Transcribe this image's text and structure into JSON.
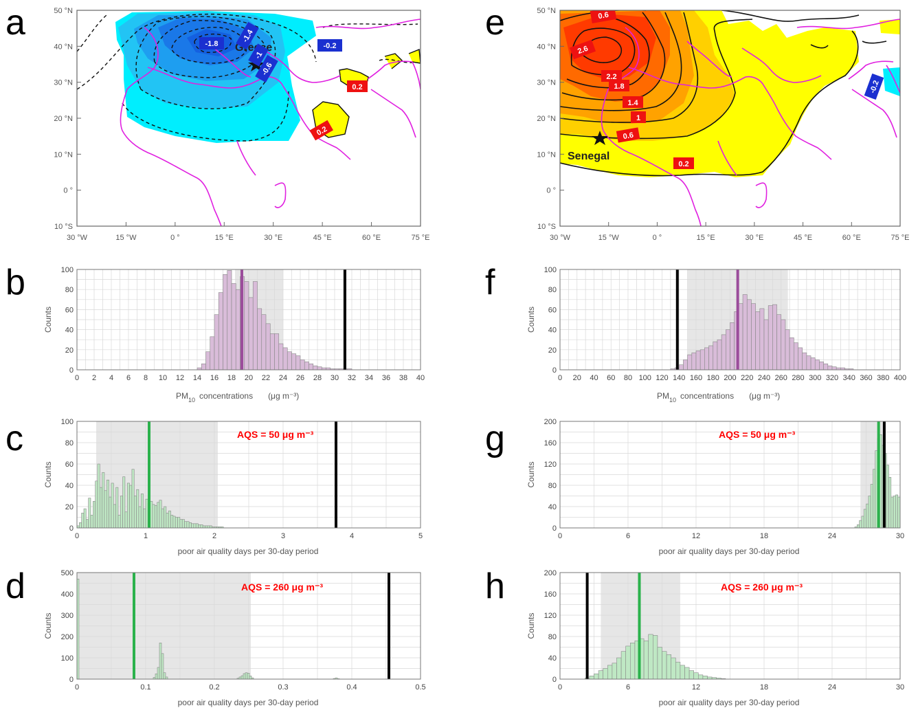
{
  "panel_labels": [
    "a",
    "e",
    "b",
    "f",
    "c",
    "g",
    "d",
    "h"
  ],
  "map_lon_ticks": [
    "30 °W",
    "15 °W",
    "0 °",
    "15 °E",
    "30 °E",
    "45 °E",
    "60 °E",
    "75 °E"
  ],
  "map_lat_ticks": [
    "50 °N",
    "40 °N",
    "30 °N",
    "20 °N",
    "10 °N",
    "0 °",
    "10 °S"
  ],
  "map_a": {
    "place": "Greece",
    "contour_labels": [
      "-1.8",
      "-1.4",
      "-1",
      "-0.6",
      "-0.2",
      "0.2",
      "0.2"
    ]
  },
  "map_e": {
    "place": "Senegal",
    "contour_labels": [
      "0.6",
      "2.6",
      "2.2",
      "1.8",
      "1.4",
      "1",
      "0.6",
      "0.2",
      "-0.2"
    ]
  },
  "xlabel_pm": "PM",
  "xlabel_pm_sub": "10",
  "xlabel_pm_rest": "concentrations",
  "xlabel_pm_unit": "(μg m⁻³)",
  "xlabel_days": "poor air quality days per 30-day period",
  "ylabel": "Counts",
  "aqs_50": "AQS = 50 μg m⁻³",
  "aqs_260": "AQS = 260 μg m⁻³",
  "chart_data": [
    {
      "panel": "b",
      "type": "bar",
      "xlim": [
        0,
        40
      ],
      "ylim": [
        0,
        100
      ],
      "xticks": [
        0,
        2,
        4,
        6,
        8,
        10,
        12,
        14,
        16,
        18,
        20,
        22,
        24,
        26,
        28,
        30,
        32,
        34,
        36,
        38,
        40
      ],
      "yticks": [
        0,
        20,
        40,
        60,
        80,
        100
      ],
      "bin_start": 14.0,
      "bin_width": 0.5,
      "values": [
        2,
        6,
        18,
        33,
        55,
        77,
        95,
        99,
        86,
        80,
        93,
        88,
        72,
        88,
        61,
        55,
        46,
        36,
        36,
        26,
        22,
        18,
        16,
        14,
        10,
        8,
        6,
        4,
        3,
        2,
        2,
        1,
        1,
        1,
        1,
        1
      ],
      "shade": [
        18.4,
        24.0
      ],
      "median_line": 19.2,
      "observed_line": 31.2,
      "hist_color": "#d9bcd9",
      "median_color": "#9b4c9b",
      "shade_color": "#e6e6e6"
    },
    {
      "panel": "f",
      "type": "bar",
      "xlim": [
        0,
        400
      ],
      "ylim": [
        0,
        100
      ],
      "xticks": [
        0,
        20,
        40,
        60,
        80,
        100,
        120,
        140,
        160,
        180,
        200,
        220,
        240,
        260,
        280,
        300,
        320,
        340,
        360,
        380,
        400
      ],
      "yticks": [
        0,
        20,
        40,
        60,
        80,
        100
      ],
      "bin_start": 130,
      "bin_width": 5,
      "values": [
        1,
        2,
        5,
        10,
        15,
        17,
        19,
        20,
        22,
        24,
        28,
        30,
        35,
        40,
        47,
        58,
        66,
        75,
        70,
        66,
        58,
        61,
        50,
        64,
        65,
        55,
        50,
        40,
        32,
        27,
        22,
        17,
        14,
        12,
        10,
        8,
        6,
        4,
        3,
        2,
        2,
        1,
        1
      ],
      "shade": [
        150,
        268
      ],
      "median_line": 209,
      "observed_line": 138,
      "hist_color": "#d9bcd9",
      "median_color": "#9b4c9b",
      "shade_color": "#e6e6e6"
    },
    {
      "panel": "c",
      "type": "bar",
      "xlim": [
        0,
        5
      ],
      "ylim": [
        0,
        100
      ],
      "xticks": [
        0,
        1,
        2,
        3,
        4,
        5
      ],
      "yticks": [
        0,
        20,
        40,
        60,
        80,
        100
      ],
      "bin_start": 0.0,
      "bin_width": 0.0333,
      "values": [
        2,
        5,
        14,
        18,
        8,
        28,
        12,
        25,
        44,
        60,
        38,
        52,
        35,
        45,
        29,
        42,
        22,
        38,
        12,
        30,
        48,
        15,
        42,
        40,
        55,
        30,
        36,
        20,
        32,
        18,
        27,
        23,
        25,
        22,
        21,
        24,
        26,
        18,
        20,
        14,
        16,
        12,
        11,
        10,
        10,
        8,
        8,
        6,
        6,
        5,
        4,
        4,
        4,
        3,
        3,
        2,
        2,
        2,
        2,
        1,
        1,
        1,
        1,
        1
      ],
      "shade": [
        0.28,
        2.05
      ],
      "median_line": 1.05,
      "observed_line": 3.77,
      "hist_color": "#bfe8c4",
      "median_color": "#2bb24c",
      "shade_color": "#e6e6e6"
    },
    {
      "panel": "g",
      "type": "bar",
      "xlim": [
        0,
        30
      ],
      "ylim": [
        0,
        200
      ],
      "xticks": [
        0,
        6,
        12,
        18,
        24,
        30
      ],
      "yticks": [
        0,
        40,
        80,
        120,
        160,
        200
      ],
      "bin_start": 26.0,
      "bin_width": 0.2,
      "values": [
        2,
        6,
        14,
        22,
        35,
        45,
        60,
        82,
        110,
        145,
        168,
        175,
        155,
        140,
        118,
        95,
        58,
        60,
        62,
        58
      ],
      "shade": [
        26.5,
        28.7
      ],
      "median_line": 28.1,
      "observed_line": 28.6,
      "hist_color": "#bfe8c4",
      "median_color": "#2bb24c",
      "shade_color": "#e6e6e6"
    },
    {
      "panel": "d",
      "type": "bar",
      "xlim": [
        0,
        0.5
      ],
      "ylim": [
        0,
        500
      ],
      "xticks": [
        0,
        0.1,
        0.2,
        0.3,
        0.4,
        0.5
      ],
      "yticks": [
        0,
        100,
        200,
        300,
        400,
        500
      ],
      "bins": [
        [
          0.0,
          0.003,
          470
        ],
        [
          0.111,
          0.114,
          8
        ],
        [
          0.114,
          0.117,
          25
        ],
        [
          0.117,
          0.12,
          55
        ],
        [
          0.12,
          0.123,
          170
        ],
        [
          0.123,
          0.126,
          120
        ],
        [
          0.126,
          0.129,
          30
        ],
        [
          0.129,
          0.132,
          10
        ],
        [
          0.233,
          0.236,
          4
        ],
        [
          0.236,
          0.239,
          10
        ],
        [
          0.239,
          0.242,
          16
        ],
        [
          0.242,
          0.245,
          26
        ],
        [
          0.245,
          0.248,
          30
        ],
        [
          0.248,
          0.251,
          28
        ],
        [
          0.251,
          0.254,
          15
        ],
        [
          0.254,
          0.257,
          6
        ],
        [
          0.373,
          0.376,
          3
        ],
        [
          0.376,
          0.379,
          6
        ],
        [
          0.379,
          0.382,
          2
        ]
      ],
      "shade": [
        0.0,
        0.253
      ],
      "median_line": 0.083,
      "observed_line": 0.454,
      "hist_color": "#bfe8c4",
      "median_color": "#2bb24c",
      "shade_color": "#e6e6e6"
    },
    {
      "panel": "h",
      "type": "bar",
      "xlim": [
        0,
        30
      ],
      "ylim": [
        0,
        200
      ],
      "xticks": [
        0,
        6,
        12,
        18,
        24,
        30
      ],
      "yticks": [
        0,
        40,
        80,
        120,
        160,
        200
      ],
      "bin_start": 2.2,
      "bin_width": 0.4,
      "values": [
        2,
        6,
        10,
        16,
        20,
        26,
        30,
        40,
        52,
        62,
        68,
        72,
        76,
        72,
        84,
        82,
        60,
        52,
        46,
        40,
        32,
        26,
        22,
        16,
        12,
        8,
        6,
        4,
        3,
        2,
        1
      ],
      "shade": [
        3.6,
        10.6
      ],
      "median_line": 7.0,
      "observed_line": 2.4,
      "hist_color": "#bfe8c4",
      "median_color": "#2bb24c",
      "shade_color": "#e6e6e6"
    }
  ]
}
